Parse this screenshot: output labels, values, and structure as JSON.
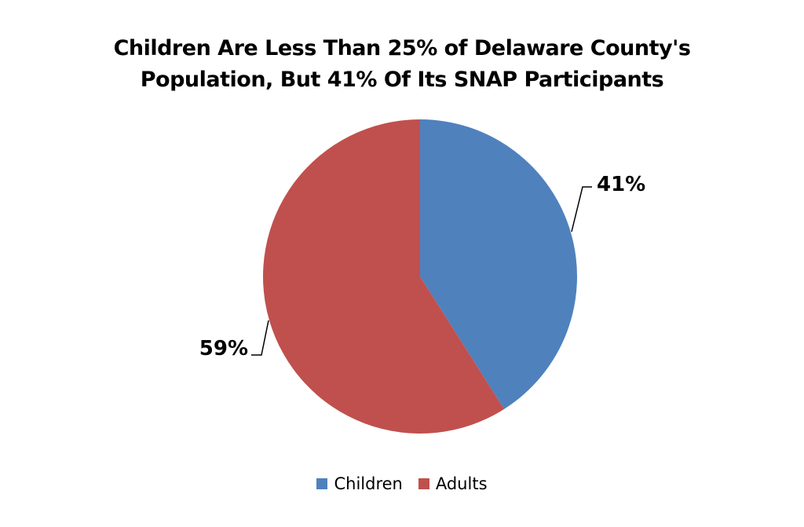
{
  "chart_data": {
    "type": "pie",
    "title": "Children Are Less Than 25% of Delaware County's Population, But 41% Of Its SNAP Participants",
    "title_lines": [
      "Children Are Less Than 25% of Delaware County's",
      "Population, But 41% Of Its SNAP Participants"
    ],
    "slices": [
      {
        "label": "Children",
        "value": 41,
        "data_label": "41%",
        "color": "#4f81bd"
      },
      {
        "label": "Adults",
        "value": 59,
        "data_label": "59%",
        "color": "#c0504d"
      }
    ],
    "legend_position": "bottom"
  }
}
